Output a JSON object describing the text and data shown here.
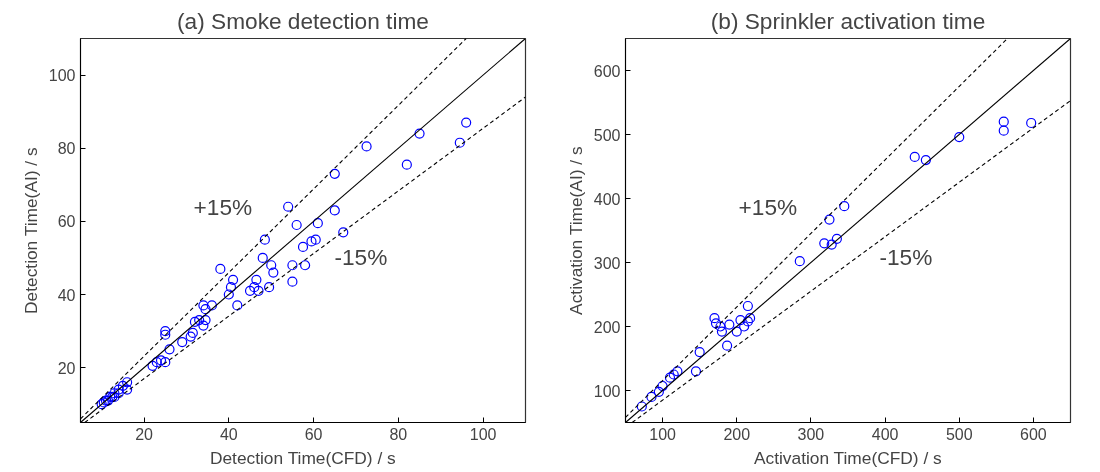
{
  "chart_data": [
    {
      "type": "scatter",
      "title": "(a) Smoke detection time",
      "xlabel": "Detection Time(CFD) / s",
      "ylabel": "Detection Time(AI) / s",
      "xlim": [
        5,
        110
      ],
      "ylim": [
        5,
        110
      ],
      "xticks": [
        20,
        40,
        60,
        80,
        100
      ],
      "yticks": [
        20,
        40,
        60,
        80,
        100
      ],
      "grid": false,
      "annotations": [
        "+15%",
        "-15%"
      ],
      "series": [
        {
          "color": "#0000ff",
          "marker": "circle",
          "x": [
            10,
            10.5,
            11,
            11.5,
            12,
            12.5,
            13,
            13,
            14,
            14,
            15,
            16,
            16,
            22,
            23,
            24,
            25,
            25,
            25,
            26,
            29,
            31,
            31.5,
            32,
            33,
            34,
            34.5,
            34,
            34.5,
            36,
            38,
            40,
            40.5,
            41,
            42,
            45,
            46,
            46.5,
            47,
            48,
            48.5,
            49.5,
            50,
            50.5,
            54,
            55,
            55,
            56,
            57.5,
            58,
            59.5,
            60.5,
            61,
            65,
            65,
            67,
            72.5,
            82,
            85,
            94.5,
            96
          ],
          "values": [
            10,
            10.5,
            11,
            11,
            12,
            12,
            13,
            12,
            14,
            13,
            15,
            16,
            14,
            20.5,
            21.5,
            22,
            21.5,
            29,
            30,
            25,
            27,
            28.5,
            29.5,
            32.5,
            33,
            31.5,
            36,
            37,
            33,
            37,
            47,
            40,
            42,
            44,
            37,
            41,
            42,
            44,
            41,
            50,
            55,
            42,
            48,
            46,
            64,
            48,
            43.5,
            59,
            53,
            48,
            54.5,
            55,
            59.5,
            73,
            63,
            57,
            80.5,
            75.5,
            84,
            81.5,
            87
          ]
        },
        {
          "type": "line",
          "color": "#000000",
          "line_style": "solid",
          "x": [
            5,
            110
          ],
          "values": [
            5,
            110
          ]
        },
        {
          "type": "line",
          "color": "#000000",
          "line_style": "dashed",
          "x": [
            5,
            96
          ],
          "values": [
            6,
            110
          ]
        },
        {
          "type": "line",
          "color": "#000000",
          "line_style": "dashed",
          "x": [
            6,
            110
          ],
          "values": [
            5,
            94
          ]
        }
      ]
    },
    {
      "type": "scatter",
      "title": "(b) Sprinkler activation time",
      "xlabel": "Activation Time(CFD) / s",
      "ylabel": "Activation Time(AI) / s",
      "xlim": [
        50,
        650
      ],
      "ylim": [
        50,
        650
      ],
      "xticks": [
        100,
        200,
        300,
        400,
        500,
        600
      ],
      "yticks": [
        100,
        200,
        300,
        400,
        500,
        600
      ],
      "grid": false,
      "annotations": [
        "+15%",
        "-15%"
      ],
      "series": [
        {
          "color": "#0000ff",
          "marker": "circle",
          "x": [
            72,
            85,
            95,
            100,
            110,
            115,
            120,
            145,
            150,
            170,
            172,
            178,
            180,
            187,
            190,
            200,
            205,
            210,
            215,
            215,
            218,
            285,
            318,
            325,
            328,
            335,
            345,
            440,
            455,
            500,
            560,
            560,
            597
          ],
          "values": [
            75,
            90,
            98,
            107,
            120,
            125,
            130,
            130,
            160,
            213,
            205,
            200,
            192,
            170,
            203,
            192,
            210,
            200,
            208,
            232,
            213,
            302,
            330,
            367,
            328,
            337,
            388,
            465,
            460,
            496,
            520,
            506,
            518
          ]
        },
        {
          "type": "line",
          "color": "#000000",
          "line_style": "solid",
          "x": [
            50,
            650
          ],
          "values": [
            50,
            650
          ]
        },
        {
          "type": "line",
          "color": "#000000",
          "line_style": "dashed",
          "x": [
            50,
            565
          ],
          "values": [
            58,
            650
          ]
        },
        {
          "type": "line",
          "color": "#000000",
          "line_style": "dashed",
          "x": [
            59,
            650
          ],
          "values": [
            50,
            553
          ]
        }
      ]
    }
  ]
}
